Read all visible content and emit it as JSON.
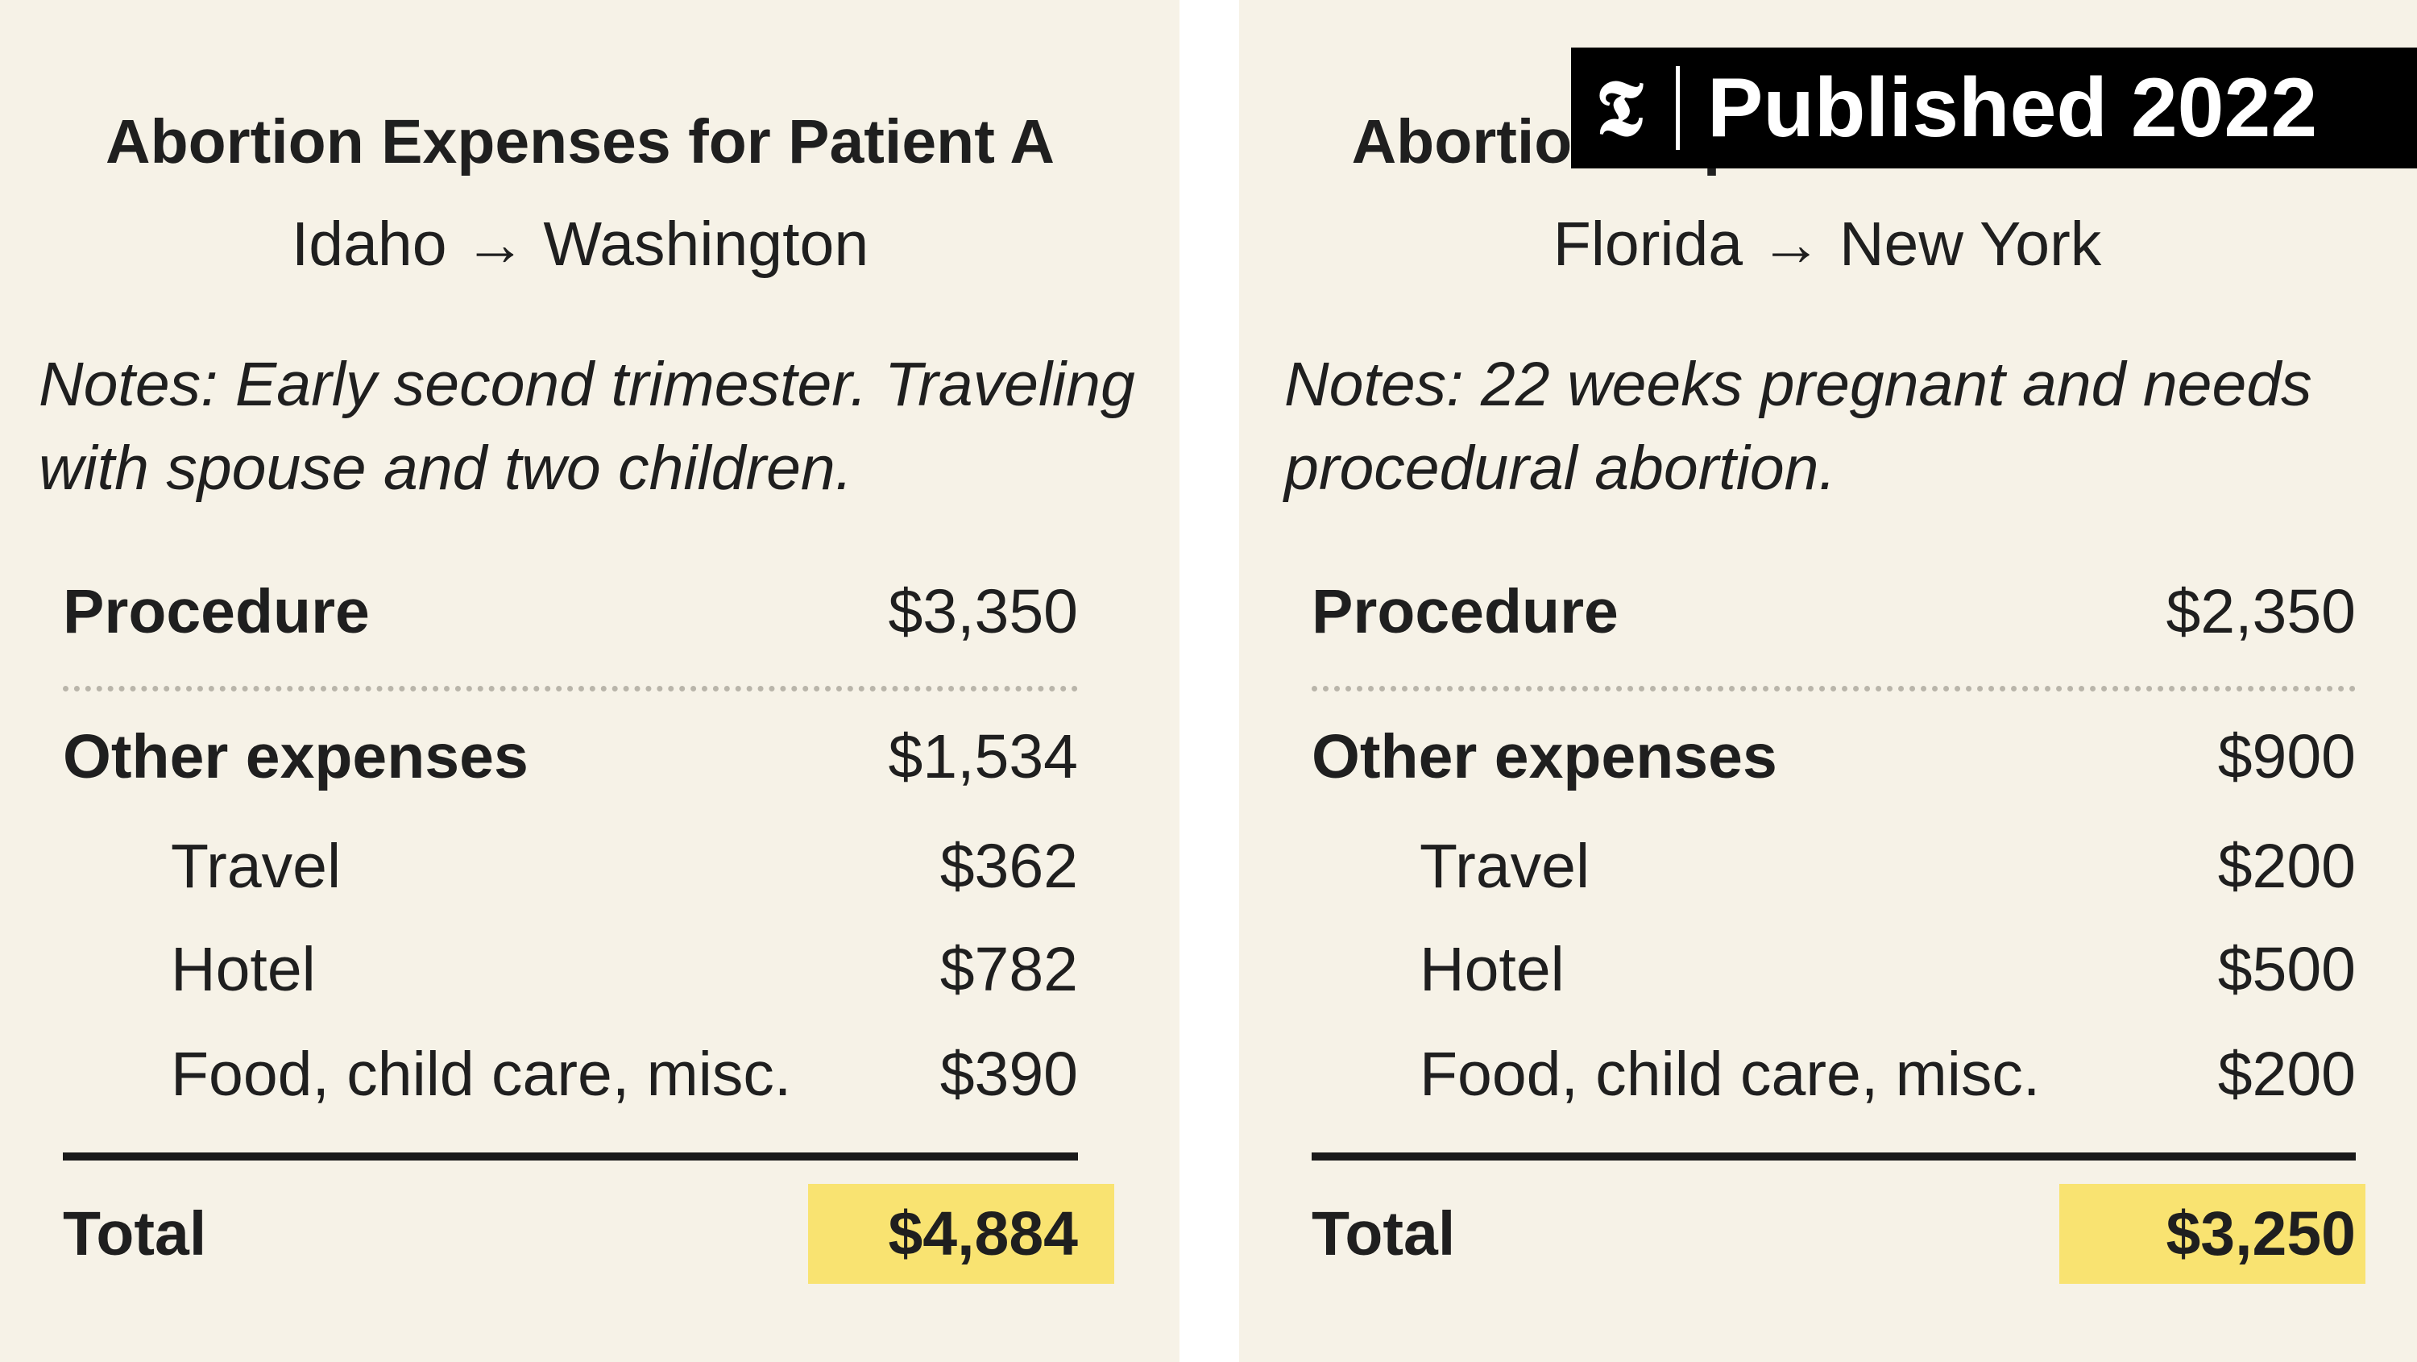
{
  "panels": [
    {
      "title": "Abortion Expenses for Patient A",
      "route_from": "Idaho",
      "route_arrow": "→",
      "route_to": "Washington",
      "notes_line1": "Notes: Early second trimester. Traveling",
      "notes_line2": "with spouse and two children.",
      "procedure_label": "Procedure",
      "procedure_value": "$3,350",
      "other_label": "Other expenses",
      "other_value": "$1,534",
      "items": [
        {
          "label": "Travel",
          "value": "$362"
        },
        {
          "label": "Hotel",
          "value": "$782"
        },
        {
          "label": "Food, child care, misc.",
          "value": "$390"
        }
      ],
      "total_label": "Total",
      "total_value": "$4,884"
    },
    {
      "title": "Abortion Expenses for Patient B",
      "route_from": "Florida",
      "route_arrow": "→",
      "route_to": "New York",
      "notes_line1": "Notes: 22 weeks pregnant and needs",
      "notes_line2": "procedural abortion.",
      "procedure_label": "Procedure",
      "procedure_value": "$2,350",
      "other_label": "Other expenses",
      "other_value": "$900",
      "items": [
        {
          "label": "Travel",
          "value": "$200"
        },
        {
          "label": "Hotel",
          "value": "$500"
        },
        {
          "label": "Food, child care, misc.",
          "value": "$200"
        }
      ],
      "total_label": "Total",
      "total_value": "$3,250"
    }
  ],
  "badge": {
    "logo": "𝕿",
    "text": "Published 2022"
  },
  "colors": {
    "panel_background": "#f6f2e7",
    "highlight": "#f9e371",
    "badge_background": "#000000"
  }
}
